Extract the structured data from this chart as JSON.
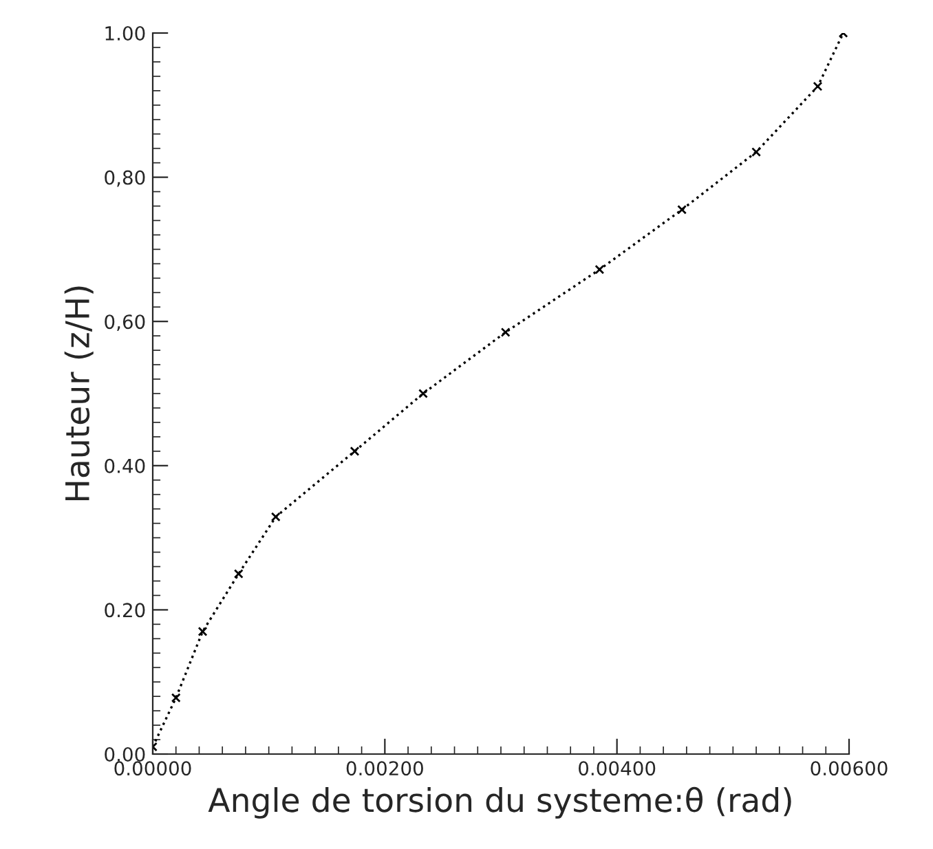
{
  "chart_data": {
    "type": "line",
    "xlabel": "Angle de torsion du systeme:θ (rad)",
    "ylabel": "Hauteur (z/H)",
    "x": [
      0,
      0.0002,
      0.00043,
      0.00074,
      0.00106,
      0.00174,
      0.00233,
      0.00304,
      0.00385,
      0.00456,
      0.0052,
      0.00573,
      0.00595
    ],
    "series": [
      {
        "color": "#000000",
        "values": [
          0.01,
          0.078,
          0.17,
          0.25,
          0.329,
          0.42,
          0.5,
          0.585,
          0.672,
          0.755,
          0.835,
          0.926,
          1.0
        ]
      }
    ],
    "xlim": [
      0,
      0.006
    ],
    "ylim": [
      0,
      1.0
    ],
    "xticks": [
      {
        "value": 0,
        "label": "0.00000"
      },
      {
        "value": 0.002,
        "label": "0.00200"
      },
      {
        "value": 0.004,
        "label": "0.00400"
      },
      {
        "value": 0.006,
        "label": "0.00600"
      }
    ],
    "yticks": [
      {
        "value": 0,
        "label": "0.00"
      },
      {
        "value": 0.2,
        "label": "0.20"
      },
      {
        "value": 0.4,
        "label": "0.40"
      },
      {
        "value": 0.6,
        "label": "0,60"
      },
      {
        "value": 0.8,
        "label": "0,80"
      },
      {
        "value": 1.0,
        "label": "1.00"
      }
    ],
    "marker": "cross",
    "line_style": "dotted",
    "grid": false,
    "legend": false
  }
}
